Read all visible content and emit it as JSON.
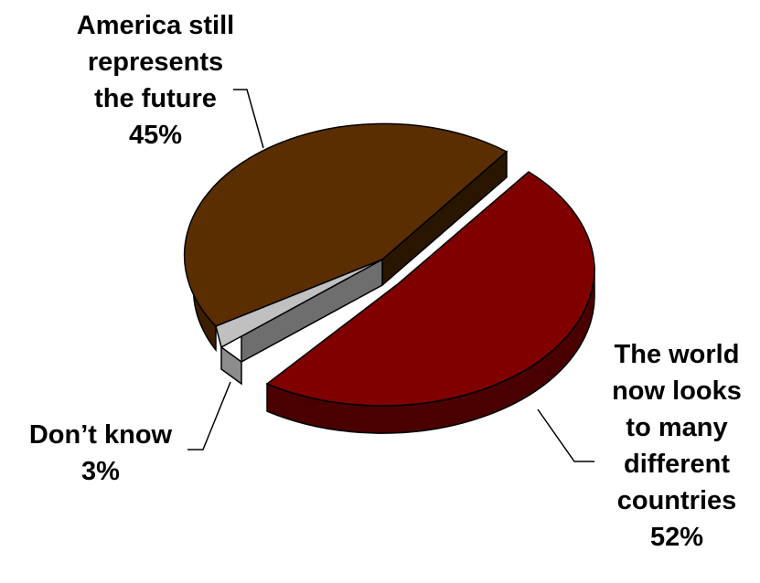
{
  "chart_data": {
    "type": "pie",
    "title": "",
    "slices": [
      {
        "label": "The world now looks to many different countries",
        "value": 52,
        "value_label": "52%",
        "color": "#800000",
        "exploded": true
      },
      {
        "label": "America still represents the future",
        "value": 45,
        "value_label": "45%",
        "color": "#5a2e00",
        "exploded": false
      },
      {
        "label": "Don’t know",
        "value": 3,
        "value_label": "3%",
        "color": "#c0c0c0",
        "exploded": false
      }
    ],
    "style": "3d-perspective",
    "legend": "none"
  },
  "labels": {
    "america": "America still\nrepresents\nthe future\n45%",
    "dontknow": "Don’t know\n3%",
    "world": "The world\nnow looks\nto many\ndifferent\ncountries\n52%"
  }
}
